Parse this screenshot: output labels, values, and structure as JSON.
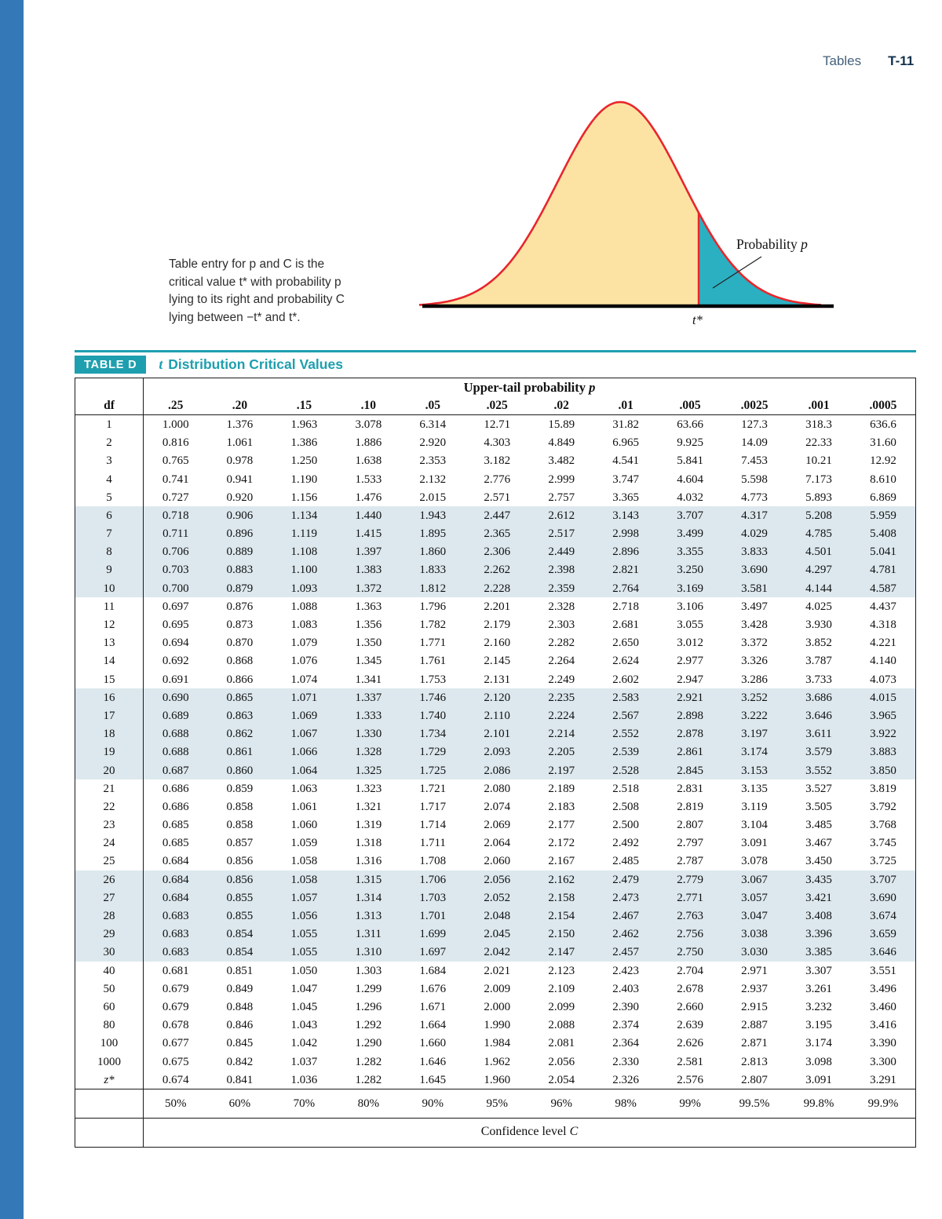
{
  "header": {
    "section": "Tables",
    "page_number": "T-11"
  },
  "figure": {
    "caption": "Table entry for p and C is the\ncritical value t* with probability p\nlying to its right and probability C\nlying between −t* and t*.",
    "probability_label": {
      "text": "Probability",
      "var": "p"
    },
    "t_star_label": "t*",
    "colors": {
      "curve_fill": "#fce3a4",
      "curve_stroke": "#e8262c",
      "tail_fill": "#2bb0c2",
      "axis": "#000000"
    }
  },
  "table": {
    "label": "TABLE D",
    "title": {
      "var": "t",
      "text": "Distribution Critical Values"
    },
    "upper_header": {
      "text": "Upper-tail probability",
      "var": "p"
    },
    "df_header": "df",
    "accent_color": "#1e9faf",
    "shaded_row_color": "#dce8ee",
    "p_values": [
      ".25",
      ".20",
      ".15",
      ".10",
      ".05",
      ".025",
      ".02",
      ".01",
      ".005",
      ".0025",
      ".001",
      ".0005"
    ],
    "rows": [
      {
        "df": "1",
        "values": [
          "1.000",
          "1.376",
          "1.963",
          "3.078",
          "6.314",
          "12.71",
          "15.89",
          "31.82",
          "63.66",
          "127.3",
          "318.3",
          "636.6"
        ]
      },
      {
        "df": "2",
        "values": [
          "0.816",
          "1.061",
          "1.386",
          "1.886",
          "2.920",
          "4.303",
          "4.849",
          "6.965",
          "9.925",
          "14.09",
          "22.33",
          "31.60"
        ]
      },
      {
        "df": "3",
        "values": [
          "0.765",
          "0.978",
          "1.250",
          "1.638",
          "2.353",
          "3.182",
          "3.482",
          "4.541",
          "5.841",
          "7.453",
          "10.21",
          "12.92"
        ]
      },
      {
        "df": "4",
        "values": [
          "0.741",
          "0.941",
          "1.190",
          "1.533",
          "2.132",
          "2.776",
          "2.999",
          "3.747",
          "4.604",
          "5.598",
          "7.173",
          "8.610"
        ]
      },
      {
        "df": "5",
        "values": [
          "0.727",
          "0.920",
          "1.156",
          "1.476",
          "2.015",
          "2.571",
          "2.757",
          "3.365",
          "4.032",
          "4.773",
          "5.893",
          "6.869"
        ]
      },
      {
        "df": "6",
        "values": [
          "0.718",
          "0.906",
          "1.134",
          "1.440",
          "1.943",
          "2.447",
          "2.612",
          "3.143",
          "3.707",
          "4.317",
          "5.208",
          "5.959"
        ]
      },
      {
        "df": "7",
        "values": [
          "0.711",
          "0.896",
          "1.119",
          "1.415",
          "1.895",
          "2.365",
          "2.517",
          "2.998",
          "3.499",
          "4.029",
          "4.785",
          "5.408"
        ]
      },
      {
        "df": "8",
        "values": [
          "0.706",
          "0.889",
          "1.108",
          "1.397",
          "1.860",
          "2.306",
          "2.449",
          "2.896",
          "3.355",
          "3.833",
          "4.501",
          "5.041"
        ]
      },
      {
        "df": "9",
        "values": [
          "0.703",
          "0.883",
          "1.100",
          "1.383",
          "1.833",
          "2.262",
          "2.398",
          "2.821",
          "3.250",
          "3.690",
          "4.297",
          "4.781"
        ]
      },
      {
        "df": "10",
        "values": [
          "0.700",
          "0.879",
          "1.093",
          "1.372",
          "1.812",
          "2.228",
          "2.359",
          "2.764",
          "3.169",
          "3.581",
          "4.144",
          "4.587"
        ]
      },
      {
        "df": "11",
        "values": [
          "0.697",
          "0.876",
          "1.088",
          "1.363",
          "1.796",
          "2.201",
          "2.328",
          "2.718",
          "3.106",
          "3.497",
          "4.025",
          "4.437"
        ]
      },
      {
        "df": "12",
        "values": [
          "0.695",
          "0.873",
          "1.083",
          "1.356",
          "1.782",
          "2.179",
          "2.303",
          "2.681",
          "3.055",
          "3.428",
          "3.930",
          "4.318"
        ]
      },
      {
        "df": "13",
        "values": [
          "0.694",
          "0.870",
          "1.079",
          "1.350",
          "1.771",
          "2.160",
          "2.282",
          "2.650",
          "3.012",
          "3.372",
          "3.852",
          "4.221"
        ]
      },
      {
        "df": "14",
        "values": [
          "0.692",
          "0.868",
          "1.076",
          "1.345",
          "1.761",
          "2.145",
          "2.264",
          "2.624",
          "2.977",
          "3.326",
          "3.787",
          "4.140"
        ]
      },
      {
        "df": "15",
        "values": [
          "0.691",
          "0.866",
          "1.074",
          "1.341",
          "1.753",
          "2.131",
          "2.249",
          "2.602",
          "2.947",
          "3.286",
          "3.733",
          "4.073"
        ]
      },
      {
        "df": "16",
        "values": [
          "0.690",
          "0.865",
          "1.071",
          "1.337",
          "1.746",
          "2.120",
          "2.235",
          "2.583",
          "2.921",
          "3.252",
          "3.686",
          "4.015"
        ]
      },
      {
        "df": "17",
        "values": [
          "0.689",
          "0.863",
          "1.069",
          "1.333",
          "1.740",
          "2.110",
          "2.224",
          "2.567",
          "2.898",
          "3.222",
          "3.646",
          "3.965"
        ]
      },
      {
        "df": "18",
        "values": [
          "0.688",
          "0.862",
          "1.067",
          "1.330",
          "1.734",
          "2.101",
          "2.214",
          "2.552",
          "2.878",
          "3.197",
          "3.611",
          "3.922"
        ]
      },
      {
        "df": "19",
        "values": [
          "0.688",
          "0.861",
          "1.066",
          "1.328",
          "1.729",
          "2.093",
          "2.205",
          "2.539",
          "2.861",
          "3.174",
          "3.579",
          "3.883"
        ]
      },
      {
        "df": "20",
        "values": [
          "0.687",
          "0.860",
          "1.064",
          "1.325",
          "1.725",
          "2.086",
          "2.197",
          "2.528",
          "2.845",
          "3.153",
          "3.552",
          "3.850"
        ]
      },
      {
        "df": "21",
        "values": [
          "0.686",
          "0.859",
          "1.063",
          "1.323",
          "1.721",
          "2.080",
          "2.189",
          "2.518",
          "2.831",
          "3.135",
          "3.527",
          "3.819"
        ]
      },
      {
        "df": "22",
        "values": [
          "0.686",
          "0.858",
          "1.061",
          "1.321",
          "1.717",
          "2.074",
          "2.183",
          "2.508",
          "2.819",
          "3.119",
          "3.505",
          "3.792"
        ]
      },
      {
        "df": "23",
        "values": [
          "0.685",
          "0.858",
          "1.060",
          "1.319",
          "1.714",
          "2.069",
          "2.177",
          "2.500",
          "2.807",
          "3.104",
          "3.485",
          "3.768"
        ]
      },
      {
        "df": "24",
        "values": [
          "0.685",
          "0.857",
          "1.059",
          "1.318",
          "1.711",
          "2.064",
          "2.172",
          "2.492",
          "2.797",
          "3.091",
          "3.467",
          "3.745"
        ]
      },
      {
        "df": "25",
        "values": [
          "0.684",
          "0.856",
          "1.058",
          "1.316",
          "1.708",
          "2.060",
          "2.167",
          "2.485",
          "2.787",
          "3.078",
          "3.450",
          "3.725"
        ]
      },
      {
        "df": "26",
        "values": [
          "0.684",
          "0.856",
          "1.058",
          "1.315",
          "1.706",
          "2.056",
          "2.162",
          "2.479",
          "2.779",
          "3.067",
          "3.435",
          "3.707"
        ]
      },
      {
        "df": "27",
        "values": [
          "0.684",
          "0.855",
          "1.057",
          "1.314",
          "1.703",
          "2.052",
          "2.158",
          "2.473",
          "2.771",
          "3.057",
          "3.421",
          "3.690"
        ]
      },
      {
        "df": "28",
        "values": [
          "0.683",
          "0.855",
          "1.056",
          "1.313",
          "1.701",
          "2.048",
          "2.154",
          "2.467",
          "2.763",
          "3.047",
          "3.408",
          "3.674"
        ]
      },
      {
        "df": "29",
        "values": [
          "0.683",
          "0.854",
          "1.055",
          "1.311",
          "1.699",
          "2.045",
          "2.150",
          "2.462",
          "2.756",
          "3.038",
          "3.396",
          "3.659"
        ]
      },
      {
        "df": "30",
        "values": [
          "0.683",
          "0.854",
          "1.055",
          "1.310",
          "1.697",
          "2.042",
          "2.147",
          "2.457",
          "2.750",
          "3.030",
          "3.385",
          "3.646"
        ]
      },
      {
        "df": "40",
        "values": [
          "0.681",
          "0.851",
          "1.050",
          "1.303",
          "1.684",
          "2.021",
          "2.123",
          "2.423",
          "2.704",
          "2.971",
          "3.307",
          "3.551"
        ]
      },
      {
        "df": "50",
        "values": [
          "0.679",
          "0.849",
          "1.047",
          "1.299",
          "1.676",
          "2.009",
          "2.109",
          "2.403",
          "2.678",
          "2.937",
          "3.261",
          "3.496"
        ]
      },
      {
        "df": "60",
        "values": [
          "0.679",
          "0.848",
          "1.045",
          "1.296",
          "1.671",
          "2.000",
          "2.099",
          "2.390",
          "2.660",
          "2.915",
          "3.232",
          "3.460"
        ]
      },
      {
        "df": "80",
        "values": [
          "0.678",
          "0.846",
          "1.043",
          "1.292",
          "1.664",
          "1.990",
          "2.088",
          "2.374",
          "2.639",
          "2.887",
          "3.195",
          "3.416"
        ]
      },
      {
        "df": "100",
        "values": [
          "0.677",
          "0.845",
          "1.042",
          "1.290",
          "1.660",
          "1.984",
          "2.081",
          "2.364",
          "2.626",
          "2.871",
          "3.174",
          "3.390"
        ]
      },
      {
        "df": "1000",
        "values": [
          "0.675",
          "0.842",
          "1.037",
          "1.282",
          "1.646",
          "1.962",
          "2.056",
          "2.330",
          "2.581",
          "2.813",
          "3.098",
          "3.300"
        ]
      },
      {
        "df": "z*",
        "values": [
          "0.674",
          "0.841",
          "1.036",
          "1.282",
          "1.645",
          "1.960",
          "2.054",
          "2.326",
          "2.576",
          "2.807",
          "3.091",
          "3.291"
        ]
      }
    ],
    "confidence_levels": [
      "50%",
      "60%",
      "70%",
      "80%",
      "90%",
      "95%",
      "96%",
      "98%",
      "99%",
      "99.5%",
      "99.8%",
      "99.9%"
    ],
    "confidence_caption": {
      "text": "Confidence level",
      "var": "C"
    }
  }
}
